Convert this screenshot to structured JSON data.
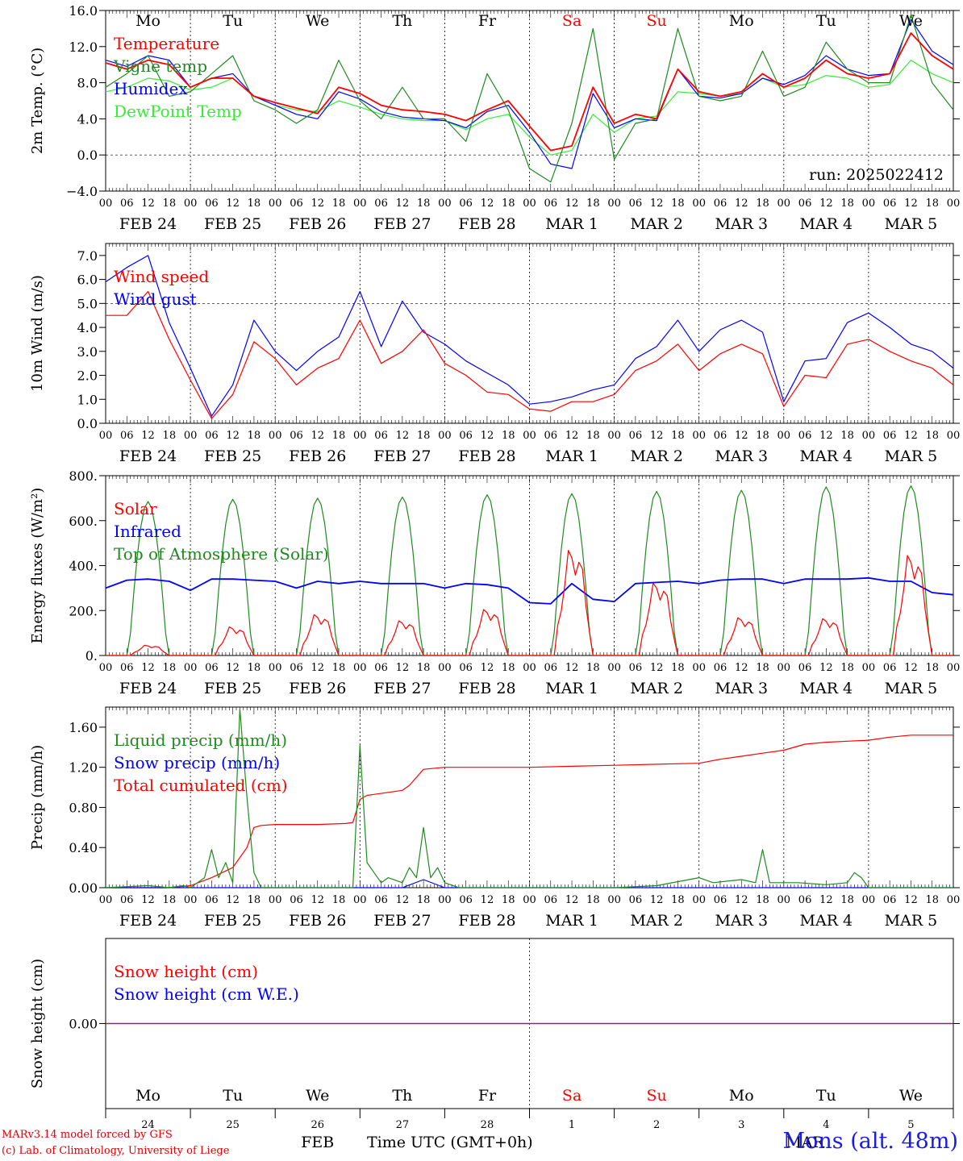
{
  "run_label": "run: 2025022412",
  "colors": {
    "red": "#ff0000",
    "green": "#1f8a1f",
    "blue": "#0000ff",
    "lightgreen": "#33ee33",
    "black": "#000000"
  },
  "day_names": [
    "Mo",
    "Tu",
    "We",
    "Th",
    "Fr",
    "Sa",
    "Su",
    "Mo",
    "Tu",
    "We"
  ],
  "weekend_flags": [
    false,
    false,
    false,
    false,
    false,
    true,
    true,
    false,
    false,
    false
  ],
  "date_labels": [
    "FEB 24",
    "FEB 25",
    "FEB 26",
    "FEB 27",
    "FEB 28",
    "MAR  1",
    "MAR  2",
    "MAR  3",
    "MAR  4",
    "MAR  5"
  ],
  "hour_labels": [
    "00",
    "06",
    "12",
    "18"
  ],
  "bottom_day_numbers": [
    "24",
    "25",
    "26",
    "27",
    "28",
    "1",
    "2",
    "3",
    "4",
    "5"
  ],
  "bottom_month_labels": [
    "FEB",
    "MAR"
  ],
  "x_axis_title": "Time UTC (GMT+0h)",
  "credit_line1": "MARv3.14 model forced by GFS",
  "credit_line2": "(c) Lab. of Climatology, University of Liege",
  "station_label": "Mons (alt. 48m)",
  "chart_data": [
    {
      "type": "line",
      "id": "temp",
      "ylabel": "2m Temp. (°C)",
      "ylim": [
        -4,
        16
      ],
      "yticks": [
        "16.0",
        "12.0",
        "8.0",
        "4.0",
        "0.0",
        "−4.0"
      ],
      "ytick_values": [
        16,
        12,
        8,
        4,
        0,
        -4
      ],
      "reference_lines": [
        0
      ],
      "x_unit": "hours since FEB 24 00 UTC",
      "series": [
        {
          "name": "Temperature",
          "color": "red",
          "x": [
            0,
            6,
            12,
            18,
            24,
            30,
            36,
            42,
            48,
            54,
            60,
            66,
            72,
            78,
            84,
            90,
            96,
            102,
            108,
            114,
            120,
            126,
            132,
            138,
            144,
            150,
            156,
            162,
            168,
            174,
            180,
            186,
            192,
            198,
            204,
            210,
            216,
            222,
            228,
            234,
            240
          ],
          "values": [
            10.2,
            9.5,
            10.5,
            10,
            7.5,
            8.5,
            8.5,
            6.5,
            5.8,
            5.2,
            4.6,
            7.5,
            6.8,
            5.5,
            5,
            4.8,
            4.5,
            3.8,
            5,
            6,
            3.2,
            0.5,
            1,
            7.5,
            3.5,
            4.5,
            4,
            9.5,
            7,
            6.5,
            7,
            9,
            7.5,
            8.5,
            10.5,
            9,
            8.5,
            9,
            13.5,
            11,
            9.5
          ]
        },
        {
          "name": "Vigne temp",
          "color": "green",
          "x": [
            0,
            6,
            12,
            18,
            24,
            30,
            36,
            42,
            48,
            54,
            60,
            66,
            72,
            78,
            84,
            90,
            96,
            102,
            108,
            114,
            120,
            126,
            132,
            138,
            144,
            150,
            156,
            162,
            168,
            174,
            180,
            186,
            192,
            198,
            204,
            210,
            216,
            222,
            228,
            234,
            240
          ],
          "values": [
            7.5,
            9,
            11,
            6.5,
            7,
            9,
            11,
            6,
            5,
            3.5,
            5,
            10.5,
            6,
            4,
            7.5,
            4,
            4,
            1.5,
            9,
            5,
            -1.5,
            -3,
            3.5,
            14,
            -0.5,
            3.5,
            4,
            14,
            6.5,
            6,
            6.5,
            11.5,
            6.5,
            7.5,
            12.5,
            9.5,
            8,
            8,
            15.5,
            8,
            5
          ]
        },
        {
          "name": "Humidex",
          "color": "blue",
          "x": [
            0,
            6,
            12,
            18,
            24,
            30,
            36,
            42,
            48,
            54,
            60,
            66,
            72,
            78,
            84,
            90,
            96,
            102,
            108,
            114,
            120,
            126,
            132,
            138,
            144,
            150,
            156,
            162,
            168,
            174,
            180,
            186,
            192,
            198,
            204,
            210,
            216,
            222,
            228,
            234,
            240
          ],
          "values": [
            10.5,
            9.8,
            11,
            10.5,
            7.5,
            8.5,
            9,
            6.5,
            5.5,
            4.5,
            4,
            7,
            6.2,
            4.8,
            4.2,
            4,
            3.8,
            3,
            4.8,
            5.5,
            2.5,
            -1,
            -1.5,
            6.8,
            3,
            4,
            3.8,
            9.5,
            6.5,
            6.3,
            6.8,
            8.5,
            7.8,
            8.8,
            11,
            9.5,
            8.8,
            9,
            15,
            11.5,
            10
          ]
        },
        {
          "name": "DewPoint Temp",
          "color": "lightgreen",
          "x": [
            0,
            6,
            12,
            18,
            24,
            30,
            36,
            42,
            48,
            54,
            60,
            66,
            72,
            78,
            84,
            90,
            96,
            102,
            108,
            114,
            120,
            126,
            132,
            138,
            144,
            150,
            156,
            162,
            168,
            174,
            180,
            186,
            192,
            198,
            204,
            210,
            216,
            222,
            228,
            234,
            240
          ],
          "values": [
            7,
            7.5,
            8.5,
            8.2,
            7.2,
            7.5,
            8.5,
            6.5,
            5.5,
            5,
            4.8,
            6,
            5.3,
            4.5,
            4,
            3.8,
            3.8,
            2.8,
            4,
            4.5,
            2,
            0,
            0.5,
            4.5,
            2.5,
            4,
            4.3,
            7,
            6.8,
            6.5,
            6.8,
            8.5,
            7.5,
            7.8,
            8.8,
            8.5,
            7.5,
            7.8,
            10.5,
            9,
            8
          ]
        }
      ],
      "legend": [
        "Temperature",
        "Vigne temp",
        "Humidex",
        "DewPoint Temp"
      ],
      "legend_position": "top-left",
      "grid": false
    },
    {
      "type": "line",
      "id": "wind",
      "ylabel": "10m Wind (m/s)",
      "ylim": [
        0,
        7.5
      ],
      "yticks": [
        "7.0",
        "6.0",
        "5.0",
        "4.0",
        "3.0",
        "2.0",
        "1.0",
        "0.0"
      ],
      "ytick_values": [
        7,
        6,
        5,
        4,
        3,
        2,
        1,
        0
      ],
      "reference_lines": [
        5
      ],
      "x_unit": "hours since FEB 24 00 UTC",
      "series": [
        {
          "name": "Wind speed",
          "color": "red",
          "x": [
            0,
            6,
            12,
            18,
            24,
            30,
            36,
            42,
            48,
            54,
            60,
            66,
            72,
            78,
            84,
            90,
            96,
            102,
            108,
            114,
            120,
            126,
            132,
            138,
            144,
            150,
            156,
            162,
            168,
            174,
            180,
            186,
            192,
            198,
            204,
            210,
            216,
            222,
            228,
            234,
            240
          ],
          "values": [
            4.5,
            4.5,
            5.5,
            3.5,
            1.8,
            0.2,
            1.2,
            3.4,
            2.7,
            1.6,
            2.3,
            2.7,
            4.3,
            2.5,
            3,
            3.9,
            2.5,
            2,
            1.3,
            1.2,
            0.6,
            0.5,
            0.9,
            0.9,
            1.2,
            2.2,
            2.6,
            3.3,
            2.2,
            2.9,
            3.3,
            2.9,
            0.7,
            2,
            1.9,
            3.3,
            3.5,
            3,
            2.6,
            2.3,
            1.6
          ]
        },
        {
          "name": "Wind gust",
          "color": "blue",
          "x": [
            0,
            6,
            12,
            18,
            24,
            30,
            36,
            42,
            48,
            54,
            60,
            66,
            72,
            78,
            84,
            90,
            96,
            102,
            108,
            114,
            120,
            126,
            132,
            138,
            144,
            150,
            156,
            162,
            168,
            174,
            180,
            186,
            192,
            198,
            204,
            210,
            216,
            222,
            228,
            234,
            240
          ],
          "values": [
            5.9,
            6.5,
            7,
            4.2,
            2.3,
            0.3,
            1.6,
            4.3,
            3,
            2.2,
            3,
            3.6,
            5.5,
            3.2,
            5.1,
            3.8,
            3.3,
            2.6,
            2.1,
            1.6,
            0.8,
            0.9,
            1.1,
            1.4,
            1.6,
            2.7,
            3.2,
            4.3,
            3,
            3.9,
            4.3,
            3.8,
            0.9,
            2.6,
            2.7,
            4.2,
            4.6,
            4,
            3.3,
            3,
            2.3
          ]
        }
      ],
      "legend": [
        "Wind speed",
        "Wind gust"
      ],
      "legend_position": "top-left",
      "grid": false
    },
    {
      "type": "line",
      "id": "energy",
      "ylabel": "Energy fluxes (W/m²)",
      "ylim": [
        0,
        800
      ],
      "yticks": [
        "800.",
        "600.",
        "400.",
        "200.",
        "0."
      ],
      "ytick_values": [
        800,
        600,
        400,
        200,
        0
      ],
      "reference_lines": [],
      "x_unit": "hours since FEB 24 00 UTC",
      "solar_peaks": [
        50,
        140,
        200,
        170,
        225,
        515,
        355,
        185,
        180,
        490
      ],
      "toa_peaks": [
        685,
        695,
        700,
        705,
        715,
        720,
        730,
        735,
        750,
        755
      ],
      "series": [
        {
          "name": "Solar",
          "color": "red"
        },
        {
          "name": "Infrared",
          "color": "blue",
          "x": [
            0,
            6,
            12,
            18,
            24,
            30,
            36,
            42,
            48,
            54,
            60,
            66,
            72,
            78,
            84,
            90,
            96,
            102,
            108,
            114,
            120,
            126,
            132,
            138,
            144,
            150,
            156,
            162,
            168,
            174,
            180,
            186,
            192,
            198,
            204,
            210,
            216,
            222,
            228,
            234,
            240
          ],
          "values": [
            300,
            335,
            340,
            330,
            290,
            340,
            340,
            335,
            330,
            300,
            330,
            320,
            330,
            320,
            320,
            320,
            300,
            320,
            315,
            300,
            235,
            230,
            320,
            250,
            240,
            320,
            325,
            330,
            320,
            335,
            340,
            340,
            320,
            340,
            340,
            340,
            345,
            330,
            330,
            280,
            270
          ]
        },
        {
          "name": "Top of Atmosphere (Solar)",
          "color": "green"
        }
      ],
      "legend": [
        "Solar",
        "Infrared",
        "Top of Atmosphere (Solar)"
      ],
      "legend_position": "top-left",
      "grid": false
    },
    {
      "type": "line",
      "id": "precip",
      "ylabel": "Precip (mm/h)",
      "ylim": [
        0,
        1.8
      ],
      "yticks": [
        "1.60",
        "1.20",
        "0.80",
        "0.40",
        "0.00"
      ],
      "ytick_values": [
        1.6,
        1.2,
        0.8,
        0.4,
        0
      ],
      "reference_lines": [],
      "x_unit": "hours since FEB 24 00 UTC",
      "series": [
        {
          "name": "Liquid precip (mm/h)",
          "color": "green",
          "x": [
            0,
            12,
            18,
            22,
            24,
            28,
            30,
            32,
            34,
            36,
            38,
            40,
            42,
            44,
            46,
            48,
            60,
            70,
            72,
            74,
            76,
            78,
            80,
            84,
            86,
            88,
            90,
            92,
            94,
            96,
            100,
            120,
            144,
            156,
            168,
            172,
            180,
            184,
            186,
            188,
            190,
            196,
            204,
            210,
            212,
            214,
            216,
            240
          ],
          "values": [
            0,
            0.02,
            0,
            0.02,
            0,
            0.1,
            0.38,
            0.1,
            0.25,
            0.05,
            1.78,
            0.9,
            0.15,
            0,
            0,
            0,
            0,
            0,
            1.42,
            0.25,
            0.15,
            0.05,
            0.1,
            0.05,
            0.2,
            0.1,
            0.6,
            0.1,
            0.2,
            0.05,
            0,
            0,
            0,
            0.02,
            0.1,
            0.05,
            0.08,
            0.05,
            0.38,
            0.05,
            0.05,
            0.05,
            0.03,
            0.05,
            0.15,
            0.1,
            0,
            0
          ]
        },
        {
          "name": "Snow precip (mm/h)",
          "color": "blue",
          "x": [
            0,
            84,
            90,
            96,
            240
          ],
          "values": [
            0,
            0,
            0.08,
            0,
            0
          ]
        },
        {
          "name": "Total cumulated (cm)",
          "color": "red",
          "x": [
            0,
            6,
            12,
            18,
            24,
            30,
            36,
            40,
            42,
            44,
            48,
            60,
            68,
            70,
            72,
            74,
            76,
            80,
            84,
            86,
            88,
            90,
            96,
            102,
            108,
            120,
            132,
            144,
            156,
            168,
            174,
            180,
            186,
            192,
            198,
            204,
            210,
            216,
            222,
            228,
            234,
            240
          ],
          "values": [
            0,
            0,
            0,
            0,
            0.02,
            0.1,
            0.2,
            0.4,
            0.6,
            0.62,
            0.63,
            0.63,
            0.64,
            0.65,
            0.88,
            0.92,
            0.93,
            0.95,
            0.97,
            1.02,
            1.1,
            1.18,
            1.2,
            1.2,
            1.2,
            1.2,
            1.21,
            1.22,
            1.23,
            1.24,
            1.28,
            1.31,
            1.34,
            1.37,
            1.43,
            1.45,
            1.46,
            1.47,
            1.5,
            1.52,
            1.52,
            1.52
          ]
        }
      ],
      "legend": [
        "Liquid precip (mm/h)",
        "Snow precip (mm/h)",
        "Total cumulated (cm)"
      ],
      "legend_position": "top-left",
      "grid": false
    },
    {
      "type": "line",
      "id": "snow",
      "ylabel": "Snow height (cm)",
      "ylim": [
        -1,
        1
      ],
      "yticks": [
        "0.00"
      ],
      "ytick_values": [
        0
      ],
      "reference_lines": [],
      "x_unit": "hours since FEB 24 00 UTC",
      "series": [
        {
          "name": "Snow height (cm)",
          "color": "red",
          "x": [
            0,
            240
          ],
          "values": [
            0,
            0
          ]
        },
        {
          "name": "Snow height (cm W.E.)",
          "color": "blue",
          "x": [
            0,
            240
          ],
          "values": [
            0,
            0
          ]
        }
      ],
      "legend": [
        "Snow height (cm)",
        "Snow height (cm W.E.)"
      ],
      "legend_position": "top-left",
      "grid": false
    }
  ]
}
